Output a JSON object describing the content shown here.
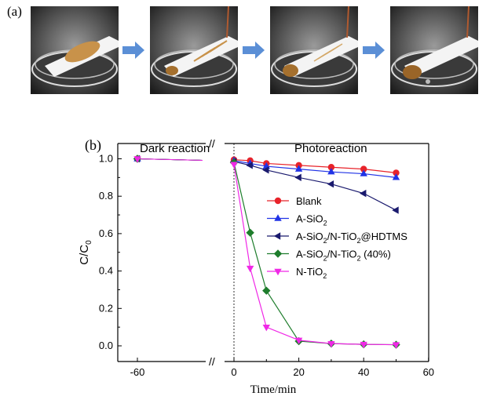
{
  "figure": {
    "panel_a_label": "(a)",
    "panel_b_label": "(b)"
  },
  "photos": [
    {
      "name": "photo-step-1",
      "description_icon": "petri-dish-oil-stain-photo"
    },
    {
      "name": "photo-step-2",
      "description_icon": "petri-dish-oil-stain-photo"
    },
    {
      "name": "photo-step-3",
      "description_icon": "petri-dish-oil-stain-photo"
    },
    {
      "name": "photo-step-4",
      "description_icon": "petri-dish-oil-stain-photo"
    }
  ],
  "arrow_color": "#5b8fd6",
  "chart_data": {
    "type": "line",
    "xlabel": "Time/min",
    "ylabel": "C/C0",
    "ylabel_main": "C/C",
    "ylabel_sub": "0",
    "xlim": [
      -70,
      60
    ],
    "ylim": [
      -0.1,
      1.08
    ],
    "x_ticks": [
      "-60",
      "0",
      "20",
      "40",
      "60"
    ],
    "y_ticks": [
      "0.0",
      "0.2",
      "0.4",
      "0.6",
      "0.8",
      "1.0"
    ],
    "x_axis_break_symbol": "//",
    "region_labels": {
      "dark": "Dark reaction",
      "photo": "Photoreaction"
    },
    "series": [
      {
        "name": "Blank",
        "name_main": "Blank",
        "name_sub": "",
        "name_tail": "",
        "color": "#e8232a",
        "marker": "circle",
        "x": [
          -60,
          0,
          5,
          10,
          20,
          30,
          40,
          50
        ],
        "y": [
          1.0,
          0.995,
          0.99,
          0.975,
          0.965,
          0.955,
          0.945,
          0.925
        ]
      },
      {
        "name": "A-SiO2",
        "name_main": "A-SiO",
        "name_sub": "2",
        "name_tail": "",
        "color": "#2033e6",
        "marker": "triangle-up",
        "x": [
          -60,
          0,
          5,
          10,
          20,
          30,
          40,
          50
        ],
        "y": [
          1.0,
          0.99,
          0.975,
          0.96,
          0.945,
          0.93,
          0.92,
          0.9
        ]
      },
      {
        "name": "A-SiO2/N-TiO2@HDTMS",
        "name_main": "A-SiO",
        "name_sub": "2",
        "name_tail": "/N-TiO",
        "name_sub2": "2",
        "name_tail2": "@HDTMS",
        "color": "#1a1a6e",
        "marker": "triangle-left",
        "x": [
          -60,
          0,
          5,
          10,
          20,
          30,
          40,
          50
        ],
        "y": [
          1.0,
          0.985,
          0.965,
          0.94,
          0.9,
          0.865,
          0.815,
          0.725
        ]
      },
      {
        "name": "A-SiO2/N-TiO2 (40%)",
        "name_main": "A-SiO",
        "name_sub": "2",
        "name_tail": "/N-TiO",
        "name_sub2": "2",
        "name_tail2": " (40%)",
        "color": "#1e7d2c",
        "marker": "diamond",
        "x": [
          -60,
          0,
          5,
          10,
          20,
          30,
          40,
          50
        ],
        "y": [
          1.0,
          0.98,
          0.605,
          0.295,
          0.025,
          0.012,
          0.008,
          0.006
        ]
      },
      {
        "name": "N-TiO2",
        "name_main": "N-TiO",
        "name_sub": "2",
        "name_tail": "",
        "color": "#f028e6",
        "marker": "triangle-down",
        "x": [
          -60,
          0,
          5,
          10,
          20,
          30,
          40,
          50
        ],
        "y": [
          1.0,
          0.97,
          0.415,
          0.1,
          0.03,
          0.012,
          0.008,
          0.006
        ]
      }
    ]
  }
}
